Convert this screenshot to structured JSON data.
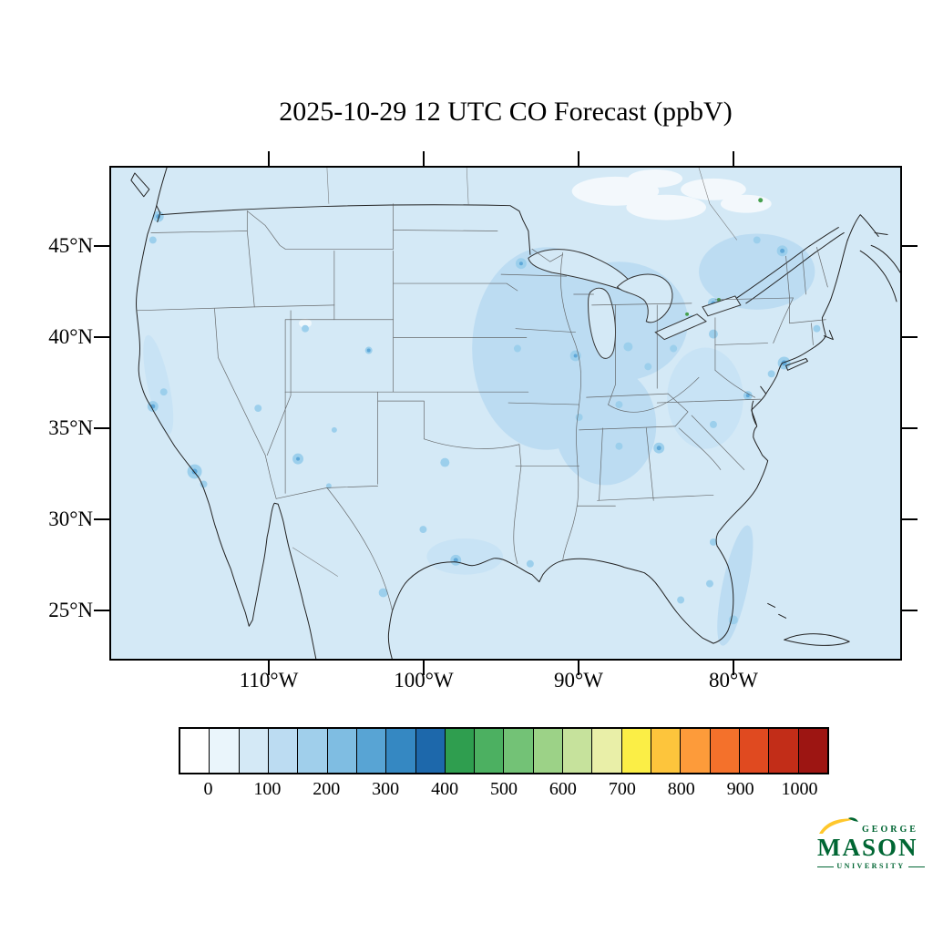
{
  "title": "2025-10-29 12 UTC CO Forecast (ppbV)",
  "axes": {
    "lat_labels": [
      "45°N",
      "40°N",
      "35°N",
      "30°N",
      "25°N"
    ],
    "lon_labels": [
      "110°W",
      "100°W",
      "90°W",
      "80°W"
    ]
  },
  "colorbar": {
    "tick_labels": [
      "0",
      "100",
      "200",
      "300",
      "400",
      "500",
      "600",
      "700",
      "800",
      "900",
      "1000"
    ],
    "colors": [
      "#ffffff",
      "#eaf5fb",
      "#d4e9f6",
      "#bcdcf2",
      "#a0cfeb",
      "#7fbde2",
      "#58a4d4",
      "#3588c2",
      "#1d68ab",
      "#2f9e4f",
      "#4cb061",
      "#73c276",
      "#9cd287",
      "#c6e29c",
      "#e9efa8",
      "#fbee46",
      "#fdc53c",
      "#fd9b3a",
      "#f4712b",
      "#e04a20",
      "#c22d18",
      "#9d1512"
    ]
  },
  "map": {
    "field_color_low": "#d4e9f6",
    "plume_color": "#bcdcf2",
    "hotspot_color": "#9ccfec",
    "hotspot_core_color": "#5fa8d8"
  },
  "logo": {
    "top_word": "GEORGE",
    "main_word": "MASON",
    "bottom_word": "UNIVERSITY",
    "green": "#006633",
    "gold": "#ffc72c"
  },
  "chart_data": {
    "type": "heatmap",
    "title": "2025-10-29 12 UTC CO Forecast (ppbV)",
    "variable": "CO",
    "units": "ppbV",
    "forecast_time": "2025-10-29 12 UTC",
    "lat_ticks": [
      "45°N",
      "40°N",
      "35°N",
      "30°N",
      "25°N"
    ],
    "lon_ticks": [
      "110°W",
      "100°W",
      "90°W",
      "80°W"
    ],
    "colorbar_levels": [
      0,
      100,
      200,
      300,
      400,
      500,
      600,
      700,
      800,
      900,
      1000
    ],
    "legend_position": "bottom",
    "value_summary": "Field over CONUS mostly 0-200 ppbV (light blues); elevated plumes over the Midwest / Great Lakes, Northeast corridor, Florida east coast, and urban hotspots; near-zero (white) patches over central Canada"
  }
}
